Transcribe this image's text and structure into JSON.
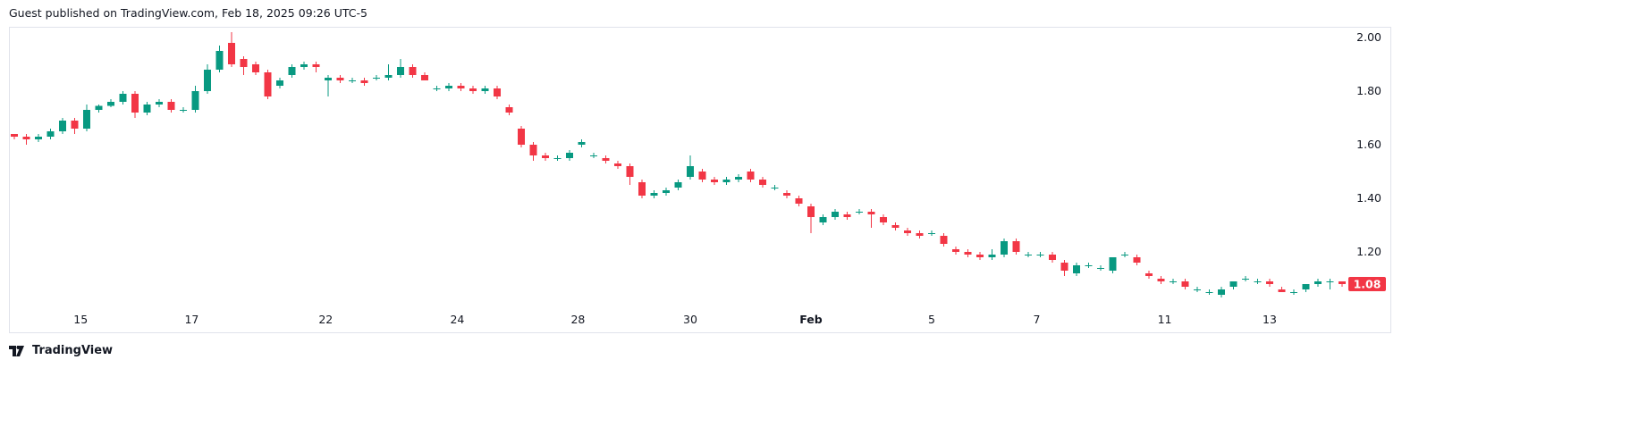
{
  "header": {
    "published": "Guest published on TradingView.com, Feb 18, 2025 09:26 UTC-5"
  },
  "logo": {
    "text": "TradingView",
    "icon": "tradingview-logo-icon"
  },
  "colors": {
    "up": "#089981",
    "down": "#f23645",
    "grid_border": "#e0e3eb",
    "text": "#131722"
  },
  "chart_data": {
    "type": "candlestick",
    "ylim": [
      1.0,
      2.03
    ],
    "y_ticks": [
      "2.00",
      "1.80",
      "1.60",
      "1.40",
      "1.20"
    ],
    "x_ticks": [
      {
        "label": "15",
        "index": 5.5
      },
      {
        "label": "17",
        "index": 14.7
      },
      {
        "label": "22",
        "index": 25.8
      },
      {
        "label": "24",
        "index": 36.7
      },
      {
        "label": "28",
        "index": 46.7
      },
      {
        "label": "30",
        "index": 56
      },
      {
        "label": "Feb",
        "index": 66,
        "bold": true
      },
      {
        "label": "5",
        "index": 76
      },
      {
        "label": "7",
        "index": 84.7
      },
      {
        "label": "11",
        "index": 95.3
      },
      {
        "label": "13",
        "index": 104
      }
    ],
    "last_price": "1.08",
    "candles": [
      [
        1.64,
        1.64,
        1.62,
        1.63
      ],
      [
        1.63,
        1.64,
        1.6,
        1.62
      ],
      [
        1.62,
        1.64,
        1.61,
        1.63
      ],
      [
        1.63,
        1.66,
        1.62,
        1.65
      ],
      [
        1.65,
        1.7,
        1.64,
        1.69
      ],
      [
        1.69,
        1.7,
        1.64,
        1.66
      ],
      [
        1.66,
        1.75,
        1.65,
        1.73
      ],
      [
        1.73,
        1.75,
        1.72,
        1.745
      ],
      [
        1.745,
        1.77,
        1.74,
        1.76
      ],
      [
        1.76,
        1.8,
        1.75,
        1.79
      ],
      [
        1.79,
        1.8,
        1.7,
        1.72
      ],
      [
        1.72,
        1.76,
        1.71,
        1.75
      ],
      [
        1.75,
        1.77,
        1.74,
        1.76
      ],
      [
        1.76,
        1.77,
        1.72,
        1.73
      ],
      [
        1.73,
        1.74,
        1.72,
        1.73
      ],
      [
        1.73,
        1.82,
        1.72,
        1.8
      ],
      [
        1.8,
        1.9,
        1.79,
        1.88
      ],
      [
        1.88,
        1.97,
        1.87,
        1.95
      ],
      [
        1.98,
        2.02,
        1.89,
        1.9
      ],
      [
        1.92,
        1.93,
        1.86,
        1.89
      ],
      [
        1.9,
        1.91,
        1.86,
        1.87
      ],
      [
        1.87,
        1.88,
        1.77,
        1.78
      ],
      [
        1.82,
        1.85,
        1.81,
        1.84
      ],
      [
        1.86,
        1.9,
        1.85,
        1.89
      ],
      [
        1.89,
        1.91,
        1.88,
        1.9
      ],
      [
        1.9,
        1.91,
        1.87,
        1.89
      ],
      [
        1.84,
        1.86,
        1.78,
        1.85
      ],
      [
        1.85,
        1.86,
        1.83,
        1.84
      ],
      [
        1.84,
        1.85,
        1.83,
        1.84
      ],
      [
        1.84,
        1.85,
        1.82,
        1.83
      ],
      [
        1.85,
        1.86,
        1.84,
        1.85
      ],
      [
        1.85,
        1.9,
        1.84,
        1.86
      ],
      [
        1.86,
        1.92,
        1.85,
        1.89
      ],
      [
        1.89,
        1.9,
        1.85,
        1.86
      ],
      [
        1.86,
        1.87,
        1.84,
        1.84
      ],
      [
        1.81,
        1.82,
        1.8,
        1.81
      ],
      [
        1.81,
        1.83,
        1.8,
        1.82
      ],
      [
        1.82,
        1.83,
        1.8,
        1.81
      ],
      [
        1.81,
        1.82,
        1.79,
        1.8
      ],
      [
        1.8,
        1.82,
        1.79,
        1.81
      ],
      [
        1.81,
        1.82,
        1.77,
        1.78
      ],
      [
        1.74,
        1.75,
        1.71,
        1.72
      ],
      [
        1.66,
        1.67,
        1.59,
        1.6
      ],
      [
        1.6,
        1.61,
        1.54,
        1.56
      ],
      [
        1.56,
        1.57,
        1.54,
        1.55
      ],
      [
        1.55,
        1.56,
        1.54,
        1.55
      ],
      [
        1.55,
        1.58,
        1.54,
        1.57
      ],
      [
        1.6,
        1.62,
        1.59,
        1.61
      ],
      [
        1.56,
        1.57,
        1.55,
        1.56
      ],
      [
        1.55,
        1.56,
        1.53,
        1.54
      ],
      [
        1.53,
        1.54,
        1.51,
        1.52
      ],
      [
        1.52,
        1.53,
        1.45,
        1.48
      ],
      [
        1.46,
        1.47,
        1.4,
        1.41
      ],
      [
        1.41,
        1.43,
        1.4,
        1.42
      ],
      [
        1.42,
        1.44,
        1.41,
        1.43
      ],
      [
        1.44,
        1.47,
        1.43,
        1.46
      ],
      [
        1.48,
        1.56,
        1.47,
        1.52
      ],
      [
        1.5,
        1.51,
        1.46,
        1.47
      ],
      [
        1.47,
        1.48,
        1.45,
        1.46
      ],
      [
        1.46,
        1.48,
        1.45,
        1.47
      ],
      [
        1.47,
        1.49,
        1.46,
        1.48
      ],
      [
        1.5,
        1.51,
        1.46,
        1.47
      ],
      [
        1.47,
        1.48,
        1.44,
        1.45
      ],
      [
        1.44,
        1.45,
        1.43,
        1.44
      ],
      [
        1.42,
        1.43,
        1.4,
        1.41
      ],
      [
        1.4,
        1.41,
        1.37,
        1.38
      ],
      [
        1.37,
        1.38,
        1.27,
        1.33
      ],
      [
        1.31,
        1.34,
        1.3,
        1.33
      ],
      [
        1.33,
        1.36,
        1.32,
        1.35
      ],
      [
        1.34,
        1.35,
        1.32,
        1.33
      ],
      [
        1.35,
        1.36,
        1.34,
        1.35
      ],
      [
        1.35,
        1.36,
        1.29,
        1.34
      ],
      [
        1.33,
        1.34,
        1.3,
        1.31
      ],
      [
        1.3,
        1.31,
        1.28,
        1.29
      ],
      [
        1.28,
        1.29,
        1.26,
        1.27
      ],
      [
        1.27,
        1.28,
        1.25,
        1.26
      ],
      [
        1.27,
        1.28,
        1.26,
        1.27
      ],
      [
        1.26,
        1.27,
        1.22,
        1.23
      ],
      [
        1.21,
        1.22,
        1.19,
        1.2
      ],
      [
        1.2,
        1.21,
        1.18,
        1.19
      ],
      [
        1.19,
        1.2,
        1.17,
        1.18
      ],
      [
        1.18,
        1.21,
        1.17,
        1.19
      ],
      [
        1.19,
        1.25,
        1.18,
        1.24
      ],
      [
        1.24,
        1.25,
        1.19,
        1.2
      ],
      [
        1.19,
        1.2,
        1.18,
        1.19
      ],
      [
        1.19,
        1.2,
        1.18,
        1.19
      ],
      [
        1.19,
        1.2,
        1.16,
        1.17
      ],
      [
        1.16,
        1.17,
        1.11,
        1.13
      ],
      [
        1.12,
        1.16,
        1.11,
        1.15
      ],
      [
        1.15,
        1.16,
        1.14,
        1.15
      ],
      [
        1.14,
        1.15,
        1.13,
        1.14
      ],
      [
        1.13,
        1.18,
        1.12,
        1.18
      ],
      [
        1.19,
        1.2,
        1.18,
        1.19
      ],
      [
        1.18,
        1.19,
        1.15,
        1.16
      ],
      [
        1.12,
        1.13,
        1.1,
        1.11
      ],
      [
        1.1,
        1.11,
        1.08,
        1.09
      ],
      [
        1.09,
        1.1,
        1.08,
        1.09
      ],
      [
        1.09,
        1.1,
        1.06,
        1.07
      ],
      [
        1.06,
        1.07,
        1.05,
        1.06
      ],
      [
        1.05,
        1.06,
        1.04,
        1.05
      ],
      [
        1.04,
        1.07,
        1.03,
        1.06
      ],
      [
        1.07,
        1.09,
        1.06,
        1.09
      ],
      [
        1.1,
        1.11,
        1.09,
        1.1
      ],
      [
        1.09,
        1.1,
        1.08,
        1.09
      ],
      [
        1.09,
        1.1,
        1.07,
        1.08
      ],
      [
        1.06,
        1.07,
        1.05,
        1.05
      ],
      [
        1.05,
        1.06,
        1.04,
        1.05
      ],
      [
        1.06,
        1.08,
        1.05,
        1.08
      ],
      [
        1.08,
        1.1,
        1.07,
        1.09
      ],
      [
        1.09,
        1.1,
        1.06,
        1.09
      ],
      [
        1.09,
        1.09,
        1.07,
        1.08
      ]
    ]
  }
}
